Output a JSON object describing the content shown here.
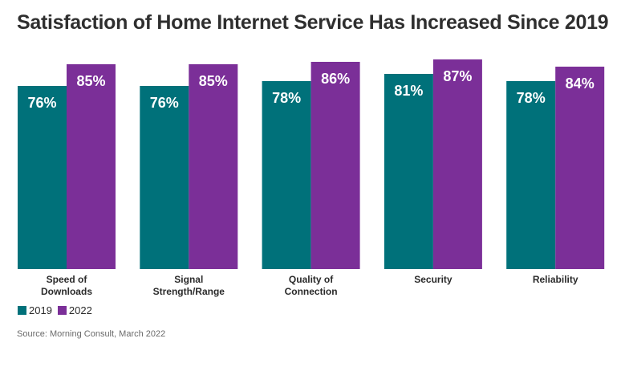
{
  "title": "Satisfaction of Home Internet Service Has Increased Since 2019",
  "source": "Source: Morning Consult, March 2022",
  "colors": {
    "series_2019": "#00717a",
    "series_2022": "#7b2f98"
  },
  "chart_data": {
    "type": "bar",
    "title": "Satisfaction of Home Internet Service Has Increased Since 2019",
    "categories": [
      [
        "Speed of",
        "Downloads"
      ],
      [
        "Signal",
        "Strength/Range"
      ],
      [
        "Quality of",
        "Connection"
      ],
      [
        "Security"
      ],
      [
        "Reliability"
      ]
    ],
    "series": [
      {
        "name": "2019",
        "values": [
          76,
          76,
          78,
          81,
          78
        ],
        "labels": [
          "76%",
          "76%",
          "78%",
          "81%",
          "78%"
        ]
      },
      {
        "name": "2022",
        "values": [
          85,
          85,
          86,
          87,
          84
        ],
        "labels": [
          "85%",
          "85%",
          "86%",
          "87%",
          "84%"
        ]
      }
    ],
    "legend_position": "bottom-left",
    "grid": false
  }
}
